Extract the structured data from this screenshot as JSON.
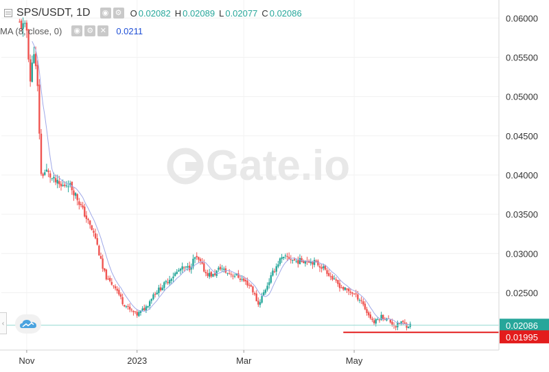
{
  "header": {
    "title": "SPS/USDT, 1D",
    "ohlc": [
      {
        "key": "O",
        "value": "0.02082"
      },
      {
        "key": "H",
        "value": "0.02089"
      },
      {
        "key": "L",
        "value": "0.02077"
      },
      {
        "key": "C",
        "value": "0.02086"
      }
    ],
    "ma_label": "MA (8, close, 0)",
    "ma_value": "0.0211"
  },
  "watermark": "Gate.io",
  "colors": {
    "up": "#26a69a",
    "down": "#ef5350",
    "ma": "#9fa8e8",
    "support": "#e31c1c",
    "price_tag": "#26a69a"
  },
  "chart_data": {
    "type": "candlestick",
    "title": "SPS/USDT, 1D",
    "y_ticks": [
      "0.06000",
      "0.05500",
      "0.05000",
      "0.04500",
      "0.04000",
      "0.03500",
      "0.03000",
      "0.02500"
    ],
    "x_ticks": [
      "Nov",
      "2023",
      "Mar",
      "May"
    ],
    "ylim": [
      0.0177,
      0.0623
    ],
    "current_price": "0.02086",
    "support_level": "0.01995",
    "close_path": [
      [
        "2022-10-28",
        0.0593
      ],
      [
        "2022-11-01",
        0.0585
      ],
      [
        "2022-11-03",
        0.052
      ],
      [
        "2022-11-05",
        0.056
      ],
      [
        "2022-11-07",
        0.051
      ],
      [
        "2022-11-09",
        0.04
      ],
      [
        "2022-11-12",
        0.0405
      ],
      [
        "2022-11-15",
        0.0395
      ],
      [
        "2022-11-20",
        0.0385
      ],
      [
        "2022-11-24",
        0.039
      ],
      [
        "2022-11-28",
        0.0375
      ],
      [
        "2022-12-01",
        0.036
      ],
      [
        "2022-12-05",
        0.034
      ],
      [
        "2022-12-09",
        0.032
      ],
      [
        "2022-12-13",
        0.028
      ],
      [
        "2022-12-16",
        0.0265
      ],
      [
        "2022-12-20",
        0.0258
      ],
      [
        "2022-12-24",
        0.0238
      ],
      [
        "2022-12-28",
        0.0228
      ],
      [
        "2023-01-01",
        0.0222
      ],
      [
        "2023-01-06",
        0.0232
      ],
      [
        "2023-01-10",
        0.0248
      ],
      [
        "2023-01-15",
        0.0258
      ],
      [
        "2023-01-20",
        0.027
      ],
      [
        "2023-01-25",
        0.028
      ],
      [
        "2023-01-30",
        0.0282
      ],
      [
        "2023-02-02",
        0.0295
      ],
      [
        "2023-02-05",
        0.0288
      ],
      [
        "2023-02-08",
        0.0275
      ],
      [
        "2023-02-12",
        0.0272
      ],
      [
        "2023-02-16",
        0.0282
      ],
      [
        "2023-02-20",
        0.0275
      ],
      [
        "2023-02-25",
        0.0272
      ],
      [
        "2023-03-01",
        0.0265
      ],
      [
        "2023-03-05",
        0.0258
      ],
      [
        "2023-03-09",
        0.0235
      ],
      [
        "2023-03-12",
        0.025
      ],
      [
        "2023-03-15",
        0.0265
      ],
      [
        "2023-03-18",
        0.028
      ],
      [
        "2023-03-21",
        0.0292
      ],
      [
        "2023-03-25",
        0.0295
      ],
      [
        "2023-03-30",
        0.029
      ],
      [
        "2023-04-05",
        0.0292
      ],
      [
        "2023-04-10",
        0.0288
      ],
      [
        "2023-04-15",
        0.028
      ],
      [
        "2023-04-20",
        0.0265
      ],
      [
        "2023-04-25",
        0.0255
      ],
      [
        "2023-04-30",
        0.025
      ],
      [
        "2023-05-05",
        0.024
      ],
      [
        "2023-05-08",
        0.0225
      ],
      [
        "2023-05-12",
        0.0212
      ],
      [
        "2023-05-16",
        0.022
      ],
      [
        "2023-05-20",
        0.0215
      ],
      [
        "2023-05-24",
        0.0207
      ],
      [
        "2023-05-27",
        0.0213
      ],
      [
        "2023-05-30",
        0.0208
      ],
      [
        "2023-06-01",
        0.0209
      ]
    ]
  }
}
